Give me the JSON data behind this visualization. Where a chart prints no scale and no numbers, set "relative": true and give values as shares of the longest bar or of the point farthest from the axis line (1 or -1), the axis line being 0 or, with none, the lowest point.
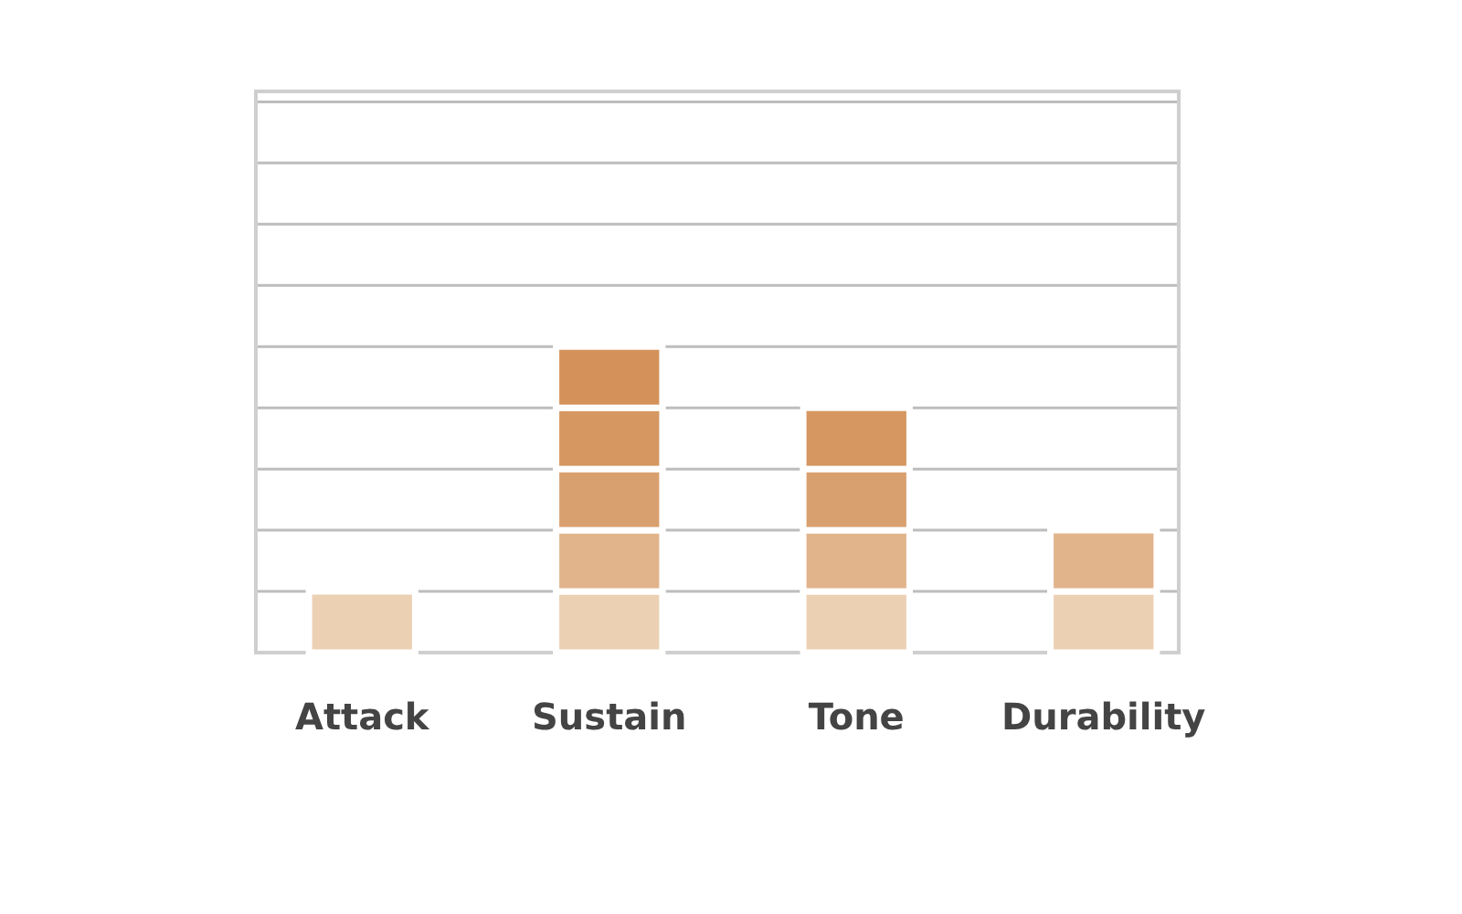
{
  "chart_data": {
    "type": "bar",
    "relative": true,
    "stacked": true,
    "grid": "y",
    "categories": [
      "Attack",
      "Sustain",
      "Tone",
      "Durability"
    ],
    "series": [
      {
        "color": "#ecd0b4",
        "values": [
          0.2,
          0.2,
          0.2,
          0.2
        ]
      },
      {
        "color": "#e2b48c",
        "values": [
          null,
          0.2,
          0.2,
          0.2
        ]
      },
      {
        "color": "#d9a06f",
        "values": [
          null,
          0.2,
          0.2,
          null
        ]
      },
      {
        "color": "#d69761",
        "values": [
          null,
          0.2,
          0.2,
          null
        ]
      },
      {
        "color": "#d4925a",
        "values": [
          null,
          0.2,
          null,
          null
        ]
      }
    ]
  }
}
